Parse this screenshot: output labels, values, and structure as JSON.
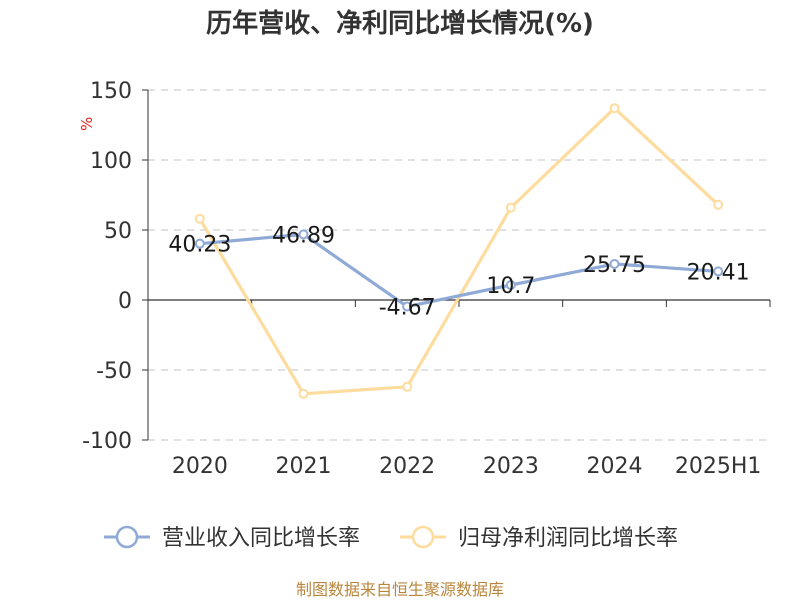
{
  "chart_data": {
    "type": "line",
    "title": "历年营收、净利同比增长情况(%)",
    "ylabel": "%",
    "xlabel": "",
    "categories": [
      "2020",
      "2021",
      "2022",
      "2023",
      "2024",
      "2025H1"
    ],
    "ylim": [
      -100,
      150
    ],
    "yticks": [
      150,
      100,
      50,
      0,
      -50,
      -100
    ],
    "grid": true,
    "legend_position": "bottom",
    "series": [
      {
        "name": "营业收入同比增长率",
        "values": [
          40.23,
          46.89,
          -4.67,
          10.7,
          25.75,
          20.41
        ],
        "labels": [
          "40.23",
          "46.89",
          "-4.67",
          "10.7",
          "25.75",
          "20.41"
        ],
        "color": "#8faad6"
      },
      {
        "name": "归母净利润同比增长率",
        "values": [
          58,
          -67,
          -62,
          66,
          137,
          68
        ],
        "color": "#fddc9e"
      }
    ],
    "source": "制图数据来自恒生聚源数据库"
  }
}
